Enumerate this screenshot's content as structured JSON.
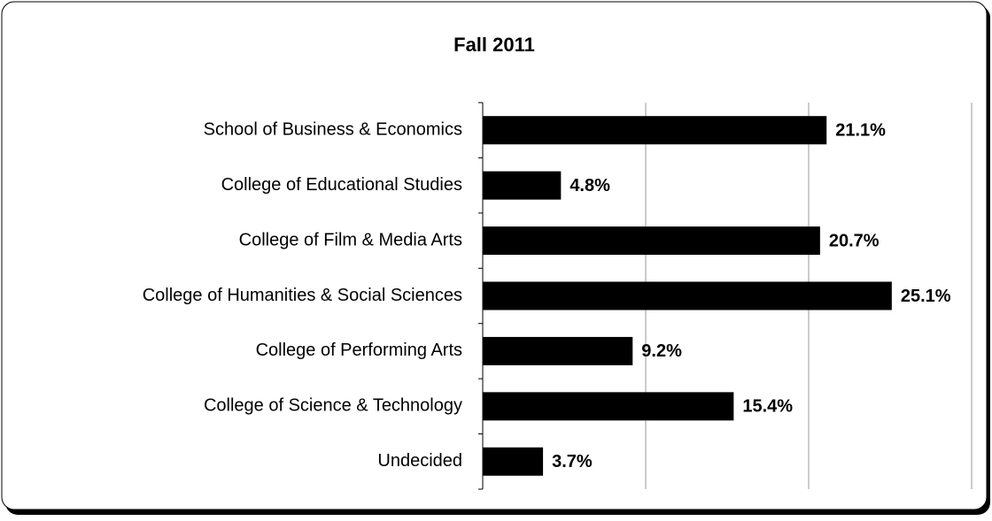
{
  "chart_data": {
    "type": "bar",
    "orientation": "horizontal",
    "title": "Fall 2011",
    "categories": [
      "School of Business & Economics",
      "College of Educational Studies",
      "College of Film & Media Arts",
      "College of Humanities & Social Sciences",
      "College of Performing Arts",
      "College of Science & Technology",
      "Undecided"
    ],
    "values": [
      21.1,
      4.8,
      20.7,
      25.1,
      9.2,
      15.4,
      3.7
    ],
    "value_labels": [
      "21.1%",
      "4.8%",
      "20.7%",
      "25.1%",
      "9.2%",
      "15.4%",
      "3.7%"
    ],
    "color": "#000000",
    "xlim": [
      0,
      30
    ],
    "xticks": [
      0,
      10,
      20,
      30
    ],
    "grid": true
  }
}
